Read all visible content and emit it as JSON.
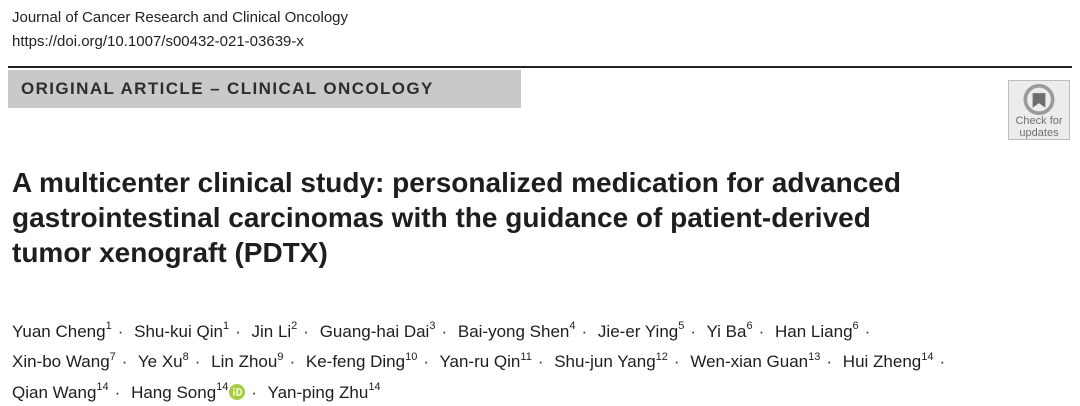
{
  "journal": {
    "name": "Journal of Cancer Research and Clinical Oncology",
    "doi": "https://doi.org/10.1007/s00432-021-03639-x"
  },
  "section": {
    "label": "ORIGINAL ARTICLE – CLINICAL ONCOLOGY"
  },
  "badge": {
    "icon": "check-for-updates-icon",
    "line1": "Check for",
    "line2": "updates"
  },
  "article": {
    "title_lines": [
      "A multicenter clinical study: personalized medication for advanced",
      "gastrointestinal carcinomas with the guidance of patient-derived",
      "tumor xenograft (PDTX)"
    ]
  },
  "authors": [
    [
      {
        "name": "Yuan Cheng",
        "aff": "1"
      },
      {
        "name": "Shu-kui Qin",
        "aff": "1"
      },
      {
        "name": "Jin Li",
        "aff": "2"
      },
      {
        "name": "Guang-hai Dai",
        "aff": "3"
      },
      {
        "name": "Bai-yong Shen",
        "aff": "4"
      },
      {
        "name": "Jie-er Ying",
        "aff": "5"
      },
      {
        "name": "Yi Ba",
        "aff": "6"
      },
      {
        "name": "Han Liang",
        "aff": "6"
      }
    ],
    [
      {
        "name": "Xin-bo Wang",
        "aff": "7"
      },
      {
        "name": "Ye Xu",
        "aff": "8"
      },
      {
        "name": "Lin Zhou",
        "aff": "9"
      },
      {
        "name": "Ke-feng Ding",
        "aff": "10"
      },
      {
        "name": "Yan-ru Qin",
        "aff": "11"
      },
      {
        "name": "Shu-jun Yang",
        "aff": "12"
      },
      {
        "name": "Wen-xian Guan",
        "aff": "13"
      },
      {
        "name": "Hui Zheng",
        "aff": "14"
      }
    ],
    [
      {
        "name": "Qian Wang",
        "aff": "14"
      },
      {
        "name": "Hang Song",
        "aff": "14"
      },
      {
        "name": "Yan-ping Zhu",
        "aff": "14"
      }
    ]
  ],
  "separator": "·",
  "colors": {
    "section_bar": "#c9c9c9",
    "orcid": "#a6ce39",
    "badge_bg": "#ececec"
  }
}
